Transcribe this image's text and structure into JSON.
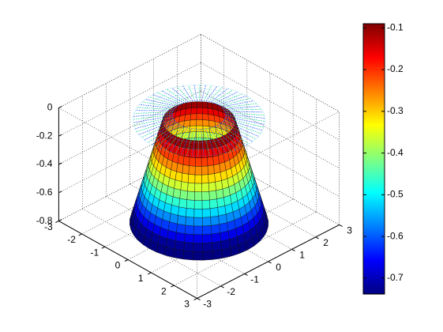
{
  "chart_data": {
    "type": "surface",
    "xlim": [
      -3,
      3
    ],
    "xticks": [
      -3,
      -2,
      -1,
      0,
      1,
      2,
      3
    ],
    "ylim": [
      -3,
      3
    ],
    "yticks": [
      -3,
      -2,
      -1,
      0,
      1,
      2,
      3
    ],
    "zlim": [
      -0.8,
      0
    ],
    "zticks": [
      0,
      -0.2,
      -0.4,
      -0.6,
      -0.8
    ],
    "grid": true,
    "colorbar": {
      "colormap": "jet",
      "clim": [
        -0.738,
        -0.09
      ],
      "ticks": [
        -0.1,
        -0.2,
        -0.3,
        -0.4,
        -0.5,
        -0.6,
        -0.7
      ]
    }
  }
}
